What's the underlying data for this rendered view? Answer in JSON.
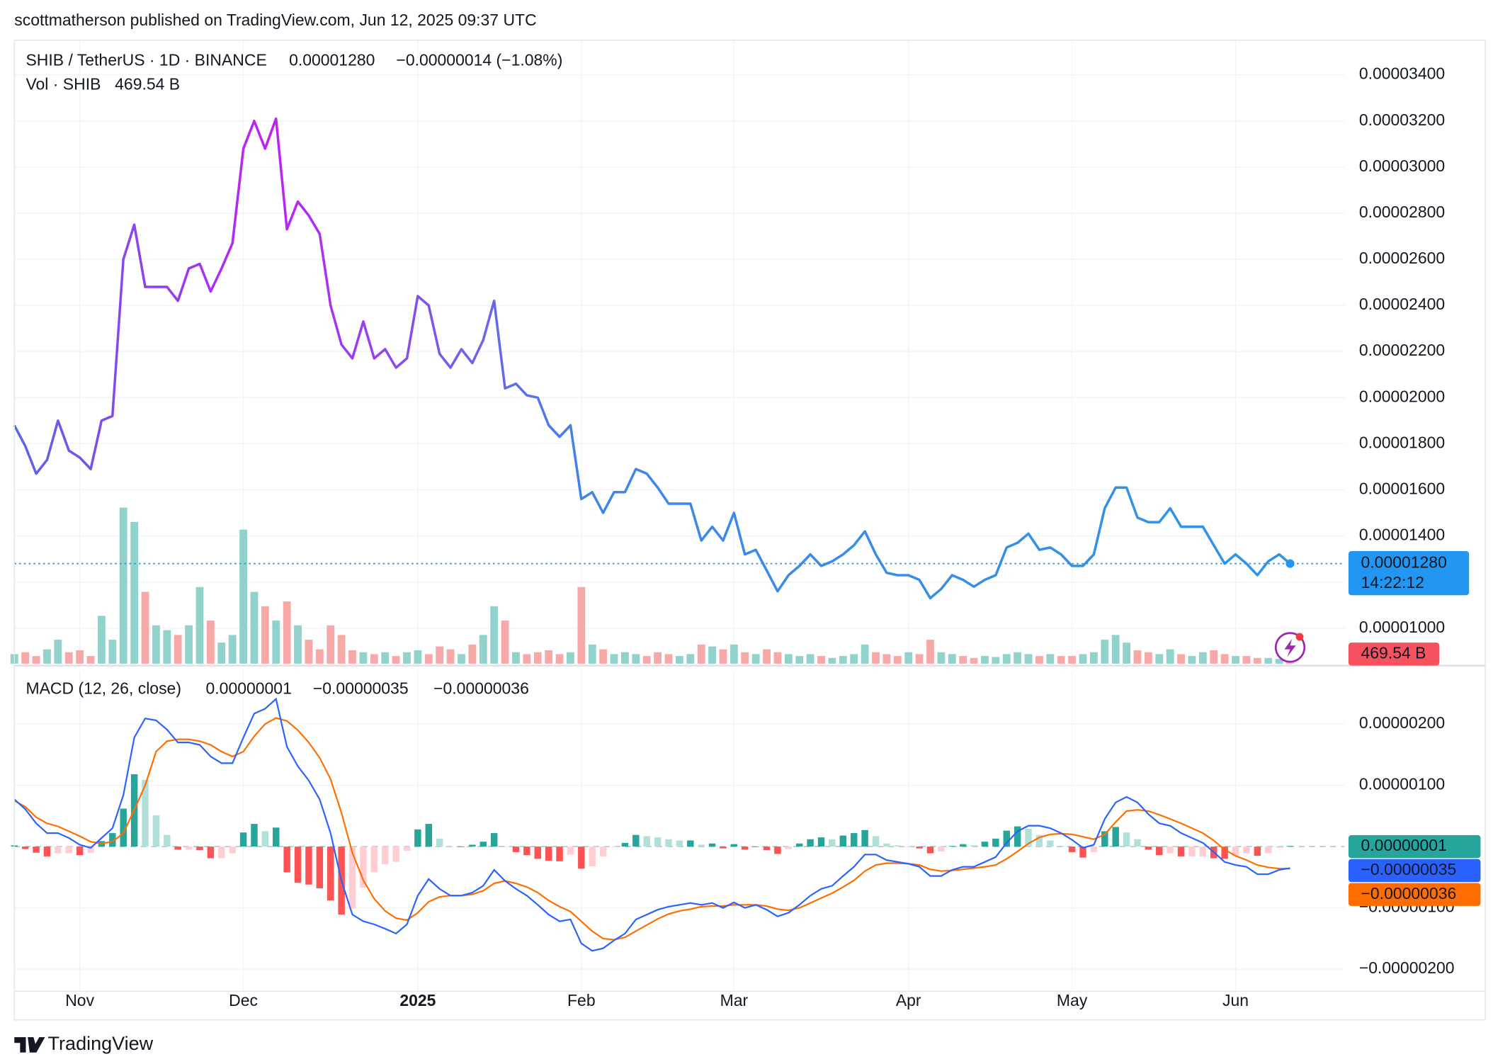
{
  "header": {
    "published": "scottmatherson published on TradingView.com, Jun 12, 2025 09:37 UTC"
  },
  "footer": {
    "brand": "TradingView"
  },
  "chart_data": [
    {
      "type": "line",
      "title": "SHIB / TetherUS · 1D · BINANCE",
      "color": "#2196f3",
      "gradient": [
        "#5866ea",
        "#c21ff5",
        "#3f86e8",
        "#2d95e6"
      ],
      "values": [
        1.88e-05,
        1.79e-05,
        1.67e-05,
        1.73e-05,
        1.9e-05,
        1.77e-05,
        1.74e-05,
        1.69e-05,
        1.9e-05,
        1.92e-05,
        2.6e-05,
        2.75e-05,
        2.48e-05,
        2.48e-05,
        2.48e-05,
        2.42e-05,
        2.56e-05,
        2.58e-05,
        2.46e-05,
        2.56e-05,
        2.67e-05,
        3.08e-05,
        3.2e-05,
        3.08e-05,
        3.21e-05,
        2.73e-05,
        2.85e-05,
        2.79e-05,
        2.71e-05,
        2.4e-05,
        2.23e-05,
        2.17e-05,
        2.33e-05,
        2.17e-05,
        2.21e-05,
        2.13e-05,
        2.17e-05,
        2.44e-05,
        2.4e-05,
        2.19e-05,
        2.13e-05,
        2.21e-05,
        2.15e-05,
        2.25e-05,
        2.42e-05,
        2.04e-05,
        2.06e-05,
        2.01e-05,
        2e-05,
        1.88e-05,
        1.83e-05,
        1.88e-05,
        1.56e-05,
        1.59e-05,
        1.5e-05,
        1.59e-05,
        1.59e-05,
        1.69e-05,
        1.67e-05,
        1.61e-05,
        1.54e-05,
        1.54e-05,
        1.54e-05,
        1.38e-05,
        1.44e-05,
        1.38e-05,
        1.5e-05,
        1.32e-05,
        1.34e-05,
        1.25e-05,
        1.16e-05,
        1.23e-05,
        1.27e-05,
        1.32e-05,
        1.27e-05,
        1.29e-05,
        1.32e-05,
        1.36e-05,
        1.42e-05,
        1.32e-05,
        1.24e-05,
        1.23e-05,
        1.23e-05,
        1.21e-05,
        1.13e-05,
        1.17e-05,
        1.23e-05,
        1.21e-05,
        1.18e-05,
        1.21e-05,
        1.23e-05,
        1.35e-05,
        1.37e-05,
        1.41e-05,
        1.34e-05,
        1.35e-05,
        1.32e-05,
        1.27e-05,
        1.27e-05,
        1.32e-05,
        1.52e-05,
        1.61e-05,
        1.61e-05,
        1.48e-05,
        1.46e-05,
        1.46e-05,
        1.52e-05,
        1.44e-05,
        1.44e-05,
        1.44e-05,
        1.36e-05,
        1.28e-05,
        1.32e-05,
        1.28e-05,
        1.23e-05,
        1.29e-05,
        1.32e-05,
        1.28e-05
      ],
      "last_label": "0.00001280",
      "change_label": "−0.00000014 (−1.08%)",
      "countdown": "14:22:12",
      "ylim": [
        8.46e-06,
        3.55e-05
      ],
      "yticks": [
        {
          "value": 1e-05,
          "label": "0.00001000"
        },
        {
          "value": 1.2e-05,
          "label": "0.00001200"
        },
        {
          "value": 1.4e-05,
          "label": "0.00001400"
        },
        {
          "value": 1.6e-05,
          "label": "0.00001600"
        },
        {
          "value": 1.8e-05,
          "label": "0.00001800"
        },
        {
          "value": 2e-05,
          "label": "0.00002000"
        },
        {
          "value": 2.2e-05,
          "label": "0.00002200"
        },
        {
          "value": 2.4e-05,
          "label": "0.00002400"
        },
        {
          "value": 2.6e-05,
          "label": "0.00002600"
        },
        {
          "value": 2.8e-05,
          "label": "0.00002800"
        },
        {
          "value": 3e-05,
          "label": "0.00003000"
        },
        {
          "value": 3.2e-05,
          "label": "0.00003200"
        },
        {
          "value": 3.4e-05,
          "label": "0.00003400"
        }
      ],
      "grid": true,
      "volume": {
        "name": "Vol · SHIB",
        "values": [
          800,
          960,
          640,
          1200,
          2000,
          960,
          1120,
          640,
          4000,
          2000,
          13040,
          11840,
          6000,
          3200,
          2800,
          2400,
          3200,
          6400,
          3600,
          1760,
          2400,
          11200,
          6000,
          4800,
          3600,
          5200,
          3200,
          2000,
          1200,
          3200,
          2400,
          1120,
          960,
          800,
          960,
          640,
          960,
          1120,
          800,
          1440,
          1200,
          800,
          1600,
          2400,
          4800,
          3600,
          960,
          800,
          960,
          1120,
          800,
          960,
          6400,
          1600,
          1200,
          800,
          960,
          800,
          640,
          960,
          800,
          640,
          800,
          1600,
          1440,
          1200,
          1600,
          960,
          800,
          1200,
          960,
          800,
          640,
          800,
          640,
          480,
          640,
          800,
          1600,
          960,
          800,
          640,
          960,
          800,
          2000,
          960,
          800,
          640,
          480,
          640,
          560,
          800,
          960,
          800,
          640,
          800,
          640,
          640,
          800,
          960,
          2000,
          2400,
          1760,
          1120,
          960,
          800,
          1200,
          800,
          640,
          960,
          1120,
          800,
          640,
          640,
          480,
          480,
          400,
          469.54
        ],
        "last_label": "469.54 B",
        "up_color": "#92d2cc",
        "down_color": "#f7a9a7",
        "label_color": "#f7525f"
      }
    },
    {
      "type": "macd",
      "title": "MACD (12, 26, close)",
      "categories": [
        null,
        null,
        null,
        null,
        null,
        null,
        "Nov",
        null,
        null,
        null,
        null,
        null,
        null,
        null,
        null,
        null,
        null,
        null,
        null,
        null,
        null,
        "Dec",
        null,
        null,
        null,
        null,
        null,
        null,
        null,
        null,
        null,
        null,
        null,
        null,
        null,
        null,
        null,
        "2025",
        null,
        null,
        null,
        null,
        null,
        null,
        null,
        null,
        null,
        null,
        null,
        null,
        null,
        null,
        "Feb",
        null,
        null,
        null,
        null,
        null,
        null,
        null,
        null,
        null,
        null,
        null,
        null,
        null,
        "Mar",
        null,
        null,
        null,
        null,
        null,
        null,
        null,
        null,
        null,
        null,
        null,
        null,
        null,
        null,
        null,
        "Apr",
        null,
        null,
        null,
        null,
        null,
        null,
        null,
        null,
        null,
        null,
        null,
        null,
        null,
        null,
        "May",
        null,
        null,
        null,
        null,
        null,
        null,
        null,
        null,
        null,
        null,
        null,
        null,
        null,
        null,
        "Jun",
        null,
        null,
        null,
        null,
        null
      ],
      "ylim": [
        -2.36e-06,
        2.875e-06
      ],
      "yticks": [
        {
          "value": 2e-06,
          "label": "0.00000200"
        },
        {
          "value": 1e-06,
          "label": "0.00000100"
        },
        {
          "value": -1e-06,
          "label": "−0.00000100"
        },
        {
          "value": -2e-06,
          "label": "−0.00000200"
        }
      ],
      "grid": true,
      "series": [
        {
          "color": [
            "#26a69a",
            "#b2dfdb",
            "#ffcdd2",
            "#ff5252"
          ],
          "last_label": "0.00000001",
          "values": [
            2e-08,
            -4e-08,
            -1e-07,
            -1.6e-07,
            -1.1e-07,
            -1.1e-07,
            -1.4e-07,
            -1e-07,
            9e-08,
            2.2e-07,
            6.2e-07,
            1.18e-06,
            1.09e-06,
            5.1e-07,
            1.9e-07,
            -5e-08,
            -5e-08,
            -6e-08,
            -1.9e-07,
            -1.9e-07,
            -1.1e-07,
            2.3e-07,
            3.7e-07,
            2.5e-07,
            3.1e-07,
            -4.2e-07,
            -5.9e-07,
            -6.2e-07,
            -6.8e-07,
            -8.8e-07,
            -1.11e-06,
            -1.01e-06,
            -6.7e-07,
            -4.2e-07,
            -2.9e-07,
            -2.5e-07,
            -7e-08,
            2.8e-07,
            3.7e-07,
            1.3e-07,
            0,
            0,
            3e-08,
            8e-08,
            2.2e-07,
            0,
            -9e-08,
            -1.4e-07,
            -2e-07,
            -2.3e-07,
            -2.4e-07,
            -1.3e-07,
            -3.6e-07,
            -3.2e-07,
            -1.6e-07,
            -1e-08,
            6e-08,
            1.9e-07,
            1.7e-07,
            1.5e-07,
            1.2e-07,
            1e-07,
            1e-07,
            3e-08,
            5e-08,
            -3e-08,
            4e-08,
            -5e-08,
            0,
            -6e-08,
            -1.2e-07,
            -4e-08,
            5e-08,
            1.2e-07,
            1.5e-07,
            1.2e-07,
            1.8e-07,
            2.2e-07,
            2.7e-07,
            1.7e-07,
            5e-08,
            2e-08,
            0,
            -3e-08,
            -1.1e-07,
            -8e-08,
            1e-08,
            4e-08,
            2e-08,
            8e-08,
            1.3e-07,
            2.6e-07,
            3.3e-07,
            2.9e-07,
            1.9e-07,
            1e-07,
            1e-08,
            -9e-08,
            -1.8e-07,
            -9e-08,
            2.5e-07,
            3.2e-07,
            2.3e-07,
            1.2e-07,
            -5e-08,
            -1.4e-07,
            -1.1e-07,
            -1.6e-07,
            -1.6e-07,
            -1.6e-07,
            -1.9e-07,
            -2e-07,
            -1.5e-07,
            -1.1e-07,
            -1.5e-07,
            -1.1e-07,
            -2e-08,
            1e-08
          ]
        },
        {
          "color": "#2962ff",
          "last_label": "−0.00000035",
          "values": [
            7.7e-07,
            6.1e-07,
            3.8e-07,
            2.2e-07,
            2.2e-07,
            1.4e-07,
            3e-08,
            -2e-08,
            1.4e-07,
            3e-07,
            8.4e-07,
            1.78e-06,
            2.09e-06,
            2.06e-06,
            1.91e-06,
            1.7e-06,
            1.7e-06,
            1.66e-06,
            1.47e-06,
            1.36e-06,
            1.36e-06,
            1.78e-06,
            2.17e-06,
            2.25e-06,
            2.41e-06,
            1.63e-06,
            1.31e-06,
            1.08e-06,
            7.7e-07,
            2.2e-07,
            -5.6e-07,
            -1.11e-06,
            -1.22e-06,
            -1.27e-06,
            -1.34e-06,
            -1.42e-06,
            -1.27e-06,
            -8e-07,
            -5.3e-07,
            -6.9e-07,
            -8e-07,
            -8e-07,
            -7.5e-07,
            -6.4e-07,
            -3.8e-07,
            -5.6e-07,
            -6.9e-07,
            -8e-07,
            -9.5e-07,
            -1.11e-06,
            -1.22e-06,
            -1.19e-06,
            -1.58e-06,
            -1.7e-06,
            -1.66e-06,
            -1.53e-06,
            -1.42e-06,
            -1.19e-06,
            -1.11e-06,
            -1.03e-06,
            -9.8e-07,
            -9.5e-07,
            -9.2e-07,
            -9.5e-07,
            -9.2e-07,
            -1e-06,
            -9.1e-07,
            -1e-06,
            -9.5e-07,
            -1.03e-06,
            -1.14e-06,
            -1.08e-06,
            -9.5e-07,
            -8e-07,
            -6.9e-07,
            -6.4e-07,
            -4.8e-07,
            -3.3e-07,
            -1.3e-07,
            -1.3e-07,
            -2.2e-07,
            -2.5e-07,
            -2.8e-07,
            -3.3e-07,
            -4.8e-07,
            -4.8e-07,
            -3.8e-07,
            -3.3e-07,
            -3.3e-07,
            -2.5e-07,
            -1.7e-07,
            6e-08,
            2.5e-07,
            3.4e-07,
            3.4e-07,
            3e-07,
            2.2e-07,
            1.1e-07,
            -2e-08,
            3e-08,
            4.5e-07,
            7.2e-07,
            8.1e-07,
            7.2e-07,
            5.3e-07,
            3.8e-07,
            3.4e-07,
            2.2e-07,
            1.4e-07,
            6e-08,
            -9e-08,
            -2.5e-07,
            -3e-07,
            -3.3e-07,
            -4.5e-07,
            -4.5e-07,
            -3.8e-07,
            -3.5e-07
          ]
        },
        {
          "color": "#ff6d00",
          "last_label": "−0.00000036",
          "values": [
            7.5e-07,
            6.5e-07,
            4.8e-07,
            3.8e-07,
            3.3e-07,
            2.5e-07,
            1.7e-07,
            8e-08,
            5e-08,
            8e-08,
            2.2e-07,
            6e-07,
            1e-06,
            1.55e-06,
            1.72e-06,
            1.75e-06,
            1.75e-06,
            1.72e-06,
            1.66e-06,
            1.55e-06,
            1.47e-06,
            1.55e-06,
            1.8e-06,
            2e-06,
            2.1e-06,
            2.05e-06,
            1.9e-06,
            1.7e-06,
            1.45e-06,
            1.1e-06,
            5.5e-07,
            -1e-07,
            -5.5e-07,
            -8.5e-07,
            -1.05e-06,
            -1.17e-06,
            -1.2e-06,
            -1.08e-06,
            -9e-07,
            -8.2e-07,
            -8e-07,
            -8e-07,
            -7.8e-07,
            -7.2e-07,
            -6e-07,
            -5.6e-07,
            -6e-07,
            -6.6e-07,
            -7.5e-07,
            -8.8e-07,
            -9.8e-07,
            -1.06e-06,
            -1.22e-06,
            -1.38e-06,
            -1.5e-06,
            -1.52e-06,
            -1.48e-06,
            -1.38e-06,
            -1.28e-06,
            -1.18e-06,
            -1.1e-06,
            -1.05e-06,
            -1.02e-06,
            -9.8e-07,
            -9.7e-07,
            -9.7e-07,
            -9.5e-07,
            -9.5e-07,
            -9.5e-07,
            -9.7e-07,
            -1.02e-06,
            -1.04e-06,
            -1e-06,
            -9.2e-07,
            -8.4e-07,
            -7.6e-07,
            -6.6e-07,
            -5.5e-07,
            -4e-07,
            -3e-07,
            -2.7e-07,
            -2.7e-07,
            -2.8e-07,
            -3e-07,
            -3.7e-07,
            -4e-07,
            -3.9e-07,
            -3.7e-07,
            -3.5e-07,
            -3.3e-07,
            -3e-07,
            -2e-07,
            -8e-08,
            5e-08,
            1.5e-07,
            2e-07,
            2.1e-07,
            2e-07,
            1.6e-07,
            1.2e-07,
            2e-07,
            4e-07,
            5.8e-07,
            6e-07,
            5.8e-07,
            5.2e-07,
            4.5e-07,
            3.8e-07,
            3e-07,
            2.2e-07,
            1e-07,
            -5e-08,
            -1.5e-07,
            -2.2e-07,
            -3e-07,
            -3.4e-07,
            -3.6e-07,
            -3.6e-07
          ]
        }
      ]
    }
  ]
}
